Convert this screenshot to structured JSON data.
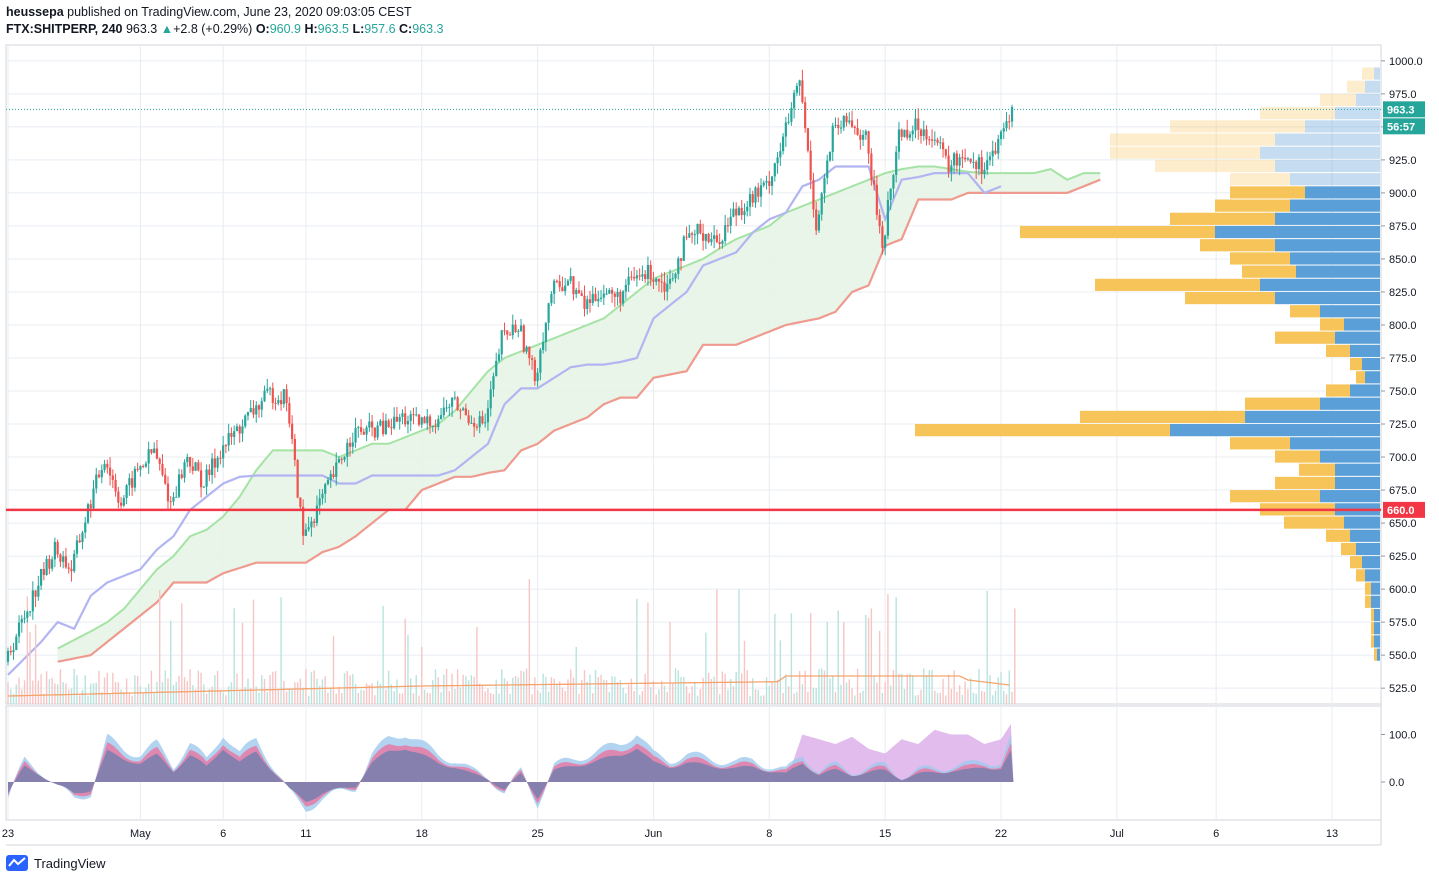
{
  "header": {
    "line1": {
      "user": "heussepa",
      "text": " published on TradingView.com, June 23, 2020 09:03:05 CEST"
    },
    "line2": {
      "symbol": "FTX:SHITPERP, 240",
      "last": "963.3",
      "change": "+2.8 (+0.29%)",
      "o_label": "O:",
      "o": "960.9",
      "h_label": "H:",
      "h": "963.5",
      "l_label": "L:",
      "l": "957.6",
      "c_label": "C:",
      "c": "963.3"
    }
  },
  "footer": {
    "brand": "TradingView"
  },
  "colors": {
    "bull": "#26a69a",
    "bear": "#ef5350",
    "grid": "#e8ecf2",
    "support": "#f23645",
    "tenkan": "#b2b5f2",
    "kijun": "#ef9a8f",
    "cloud_fill": "#e6f4e6",
    "span_a": "#a5e3a5",
    "vp_buy": "#5b9fd8",
    "vp_sell": "#f7c45a"
  },
  "chart_data": {
    "type": "candlestick",
    "timeframe": "240",
    "y_ticks": [
      "1000.0",
      "975.0",
      "950.0",
      "925.0",
      "900.0",
      "875.0",
      "850.0",
      "825.0",
      "800.0",
      "775.0",
      "750.0",
      "725.0",
      "700.0",
      "675.0",
      "650.0",
      "625.0",
      "600.0",
      "575.0",
      "550.0",
      "525.0"
    ],
    "y_tick_values": [
      1000,
      975,
      950,
      925,
      900,
      875,
      850,
      825,
      800,
      775,
      750,
      725,
      700,
      675,
      650,
      625,
      600,
      575,
      550,
      525
    ],
    "ylim": [
      513,
      1012
    ],
    "x_ticks": [
      "23",
      "May",
      "6",
      "11",
      "18",
      "25",
      "Jun",
      "8",
      "15",
      "22",
      "Jul",
      "6",
      "13"
    ],
    "x_tick_days": [
      0,
      8,
      13,
      18,
      25,
      32,
      39,
      46,
      53,
      60,
      67,
      73,
      80
    ],
    "current_price": "963.3",
    "countdown": "56:57",
    "horizontal_line": {
      "value": 660,
      "label": "660.0"
    },
    "price_path": [
      [
        0,
        545
      ],
      [
        1,
        575
      ],
      [
        2,
        605
      ],
      [
        3,
        630
      ],
      [
        4,
        615
      ],
      [
        5,
        660
      ],
      [
        6,
        700
      ],
      [
        7,
        665
      ],
      [
        8,
        690
      ],
      [
        9,
        705
      ],
      [
        10,
        665
      ],
      [
        11,
        700
      ],
      [
        12,
        680
      ],
      [
        13,
        705
      ],
      [
        14,
        720
      ],
      [
        15,
        735
      ],
      [
        16,
        748
      ],
      [
        17,
        745
      ],
      [
        18,
        640
      ],
      [
        19,
        665
      ],
      [
        20,
        690
      ],
      [
        21,
        718
      ],
      [
        22,
        720
      ],
      [
        23,
        722
      ],
      [
        24,
        730
      ],
      [
        25,
        725
      ],
      [
        26,
        728
      ],
      [
        27,
        742
      ],
      [
        28,
        730
      ],
      [
        29,
        725
      ],
      [
        30,
        790
      ],
      [
        31,
        800
      ],
      [
        32,
        760
      ],
      [
        33,
        825
      ],
      [
        34,
        835
      ],
      [
        35,
        815
      ],
      [
        36,
        826
      ],
      [
        37,
        820
      ],
      [
        38,
        835
      ],
      [
        39,
        840
      ],
      [
        40,
        830
      ],
      [
        41,
        860
      ],
      [
        42,
        872
      ],
      [
        43,
        862
      ],
      [
        44,
        885
      ],
      [
        45,
        895
      ],
      [
        46,
        905
      ],
      [
        47,
        940
      ],
      [
        48,
        985
      ],
      [
        49,
        875
      ],
      [
        50,
        945
      ],
      [
        51,
        955
      ],
      [
        52,
        940
      ],
      [
        53,
        860
      ],
      [
        54,
        945
      ],
      [
        55,
        950
      ],
      [
        56,
        945
      ],
      [
        57,
        920
      ],
      [
        58,
        930
      ],
      [
        59,
        920
      ],
      [
        60,
        935
      ],
      [
        60.75,
        963
      ]
    ],
    "tenkan": [
      [
        0,
        535
      ],
      [
        2,
        560
      ],
      [
        3,
        575
      ],
      [
        4,
        570
      ],
      [
        5,
        595
      ],
      [
        6,
        605
      ],
      [
        7,
        610
      ],
      [
        8,
        615
      ],
      [
        9,
        630
      ],
      [
        10,
        640
      ],
      [
        11,
        660
      ],
      [
        12,
        670
      ],
      [
        13,
        680
      ],
      [
        14,
        685
      ],
      [
        15,
        686
      ],
      [
        16,
        686
      ],
      [
        17,
        686
      ],
      [
        18,
        686
      ],
      [
        19,
        686
      ],
      [
        20,
        680
      ],
      [
        21,
        680
      ],
      [
        22,
        686
      ],
      [
        23,
        686
      ],
      [
        24,
        686
      ],
      [
        25,
        686
      ],
      [
        26,
        686
      ],
      [
        27,
        690
      ],
      [
        28,
        700
      ],
      [
        29,
        710
      ],
      [
        30,
        740
      ],
      [
        31,
        752
      ],
      [
        32,
        752
      ],
      [
        33,
        760
      ],
      [
        34,
        768
      ],
      [
        35,
        770
      ],
      [
        36,
        770
      ],
      [
        37,
        772
      ],
      [
        38,
        775
      ],
      [
        39,
        805
      ],
      [
        40,
        815
      ],
      [
        41,
        825
      ],
      [
        42,
        845
      ],
      [
        43,
        850
      ],
      [
        44,
        855
      ],
      [
        45,
        870
      ],
      [
        46,
        880
      ],
      [
        47,
        885
      ],
      [
        48,
        905
      ],
      [
        49,
        910
      ],
      [
        50,
        920
      ],
      [
        51,
        920
      ],
      [
        52,
        920
      ],
      [
        53,
        880
      ],
      [
        54,
        910
      ],
      [
        55,
        912
      ],
      [
        56,
        915
      ],
      [
        57,
        915
      ],
      [
        58,
        915
      ],
      [
        59,
        900
      ],
      [
        60,
        905
      ]
    ],
    "kijun": [
      [
        3,
        545
      ],
      [
        5,
        550
      ],
      [
        6,
        560
      ],
      [
        7,
        570
      ],
      [
        8,
        580
      ],
      [
        9,
        590
      ],
      [
        10,
        605
      ],
      [
        12,
        605
      ],
      [
        13,
        612
      ],
      [
        15,
        620
      ],
      [
        17,
        620
      ],
      [
        18,
        620
      ],
      [
        19,
        628
      ],
      [
        20,
        632
      ],
      [
        21,
        640
      ],
      [
        22,
        650
      ],
      [
        23,
        660
      ],
      [
        24,
        660
      ],
      [
        25,
        675
      ],
      [
        26,
        680
      ],
      [
        27,
        685
      ],
      [
        28,
        685
      ],
      [
        29,
        688
      ],
      [
        30,
        690
      ],
      [
        31,
        705
      ],
      [
        32,
        710
      ],
      [
        33,
        720
      ],
      [
        35,
        730
      ],
      [
        36,
        740
      ],
      [
        37,
        745
      ],
      [
        38,
        745
      ],
      [
        39,
        760
      ],
      [
        41,
        765
      ],
      [
        42,
        785
      ],
      [
        44,
        785
      ],
      [
        45,
        790
      ],
      [
        46,
        795
      ],
      [
        47,
        800
      ],
      [
        49,
        805
      ],
      [
        50,
        810
      ],
      [
        51,
        825
      ],
      [
        52,
        830
      ],
      [
        53,
        860
      ],
      [
        54,
        865
      ],
      [
        55,
        895
      ],
      [
        57,
        895
      ],
      [
        58,
        900
      ],
      [
        60,
        900
      ],
      [
        64,
        900
      ],
      [
        65,
        905
      ],
      [
        66,
        910
      ]
    ],
    "span_a": [
      [
        3,
        555
      ],
      [
        5,
        568
      ],
      [
        6,
        575
      ],
      [
        7,
        585
      ],
      [
        8,
        600
      ],
      [
        9,
        615
      ],
      [
        10,
        625
      ],
      [
        11,
        640
      ],
      [
        12,
        645
      ],
      [
        13,
        655
      ],
      [
        14,
        670
      ],
      [
        15,
        690
      ],
      [
        16,
        705
      ],
      [
        17,
        705
      ],
      [
        18,
        705
      ],
      [
        19,
        705
      ],
      [
        20,
        700
      ],
      [
        21,
        705
      ],
      [
        22,
        710
      ],
      [
        23,
        710
      ],
      [
        24,
        715
      ],
      [
        25,
        720
      ],
      [
        26,
        725
      ],
      [
        27,
        735
      ],
      [
        28,
        750
      ],
      [
        29,
        765
      ],
      [
        30,
        775
      ],
      [
        31,
        780
      ],
      [
        32,
        785
      ],
      [
        33,
        790
      ],
      [
        34,
        795
      ],
      [
        35,
        800
      ],
      [
        36,
        805
      ],
      [
        37,
        815
      ],
      [
        38,
        825
      ],
      [
        39,
        835
      ],
      [
        40,
        840
      ],
      [
        41,
        845
      ],
      [
        42,
        850
      ],
      [
        43,
        858
      ],
      [
        44,
        865
      ],
      [
        45,
        870
      ],
      [
        46,
        875
      ],
      [
        47,
        885
      ],
      [
        48,
        890
      ],
      [
        49,
        895
      ],
      [
        50,
        900
      ],
      [
        51,
        905
      ],
      [
        52,
        910
      ],
      [
        53,
        915
      ],
      [
        54,
        918
      ],
      [
        55,
        920
      ],
      [
        56,
        920
      ],
      [
        57,
        918
      ],
      [
        58,
        916
      ],
      [
        59,
        915
      ],
      [
        60,
        915
      ],
      [
        61,
        915
      ],
      [
        62,
        915
      ],
      [
        63,
        918
      ],
      [
        64,
        910
      ],
      [
        65,
        915
      ],
      [
        66,
        915
      ]
    ],
    "volume_profile": [
      {
        "price": 990,
        "buy": 0.02,
        "sell": 0.04
      },
      {
        "price": 980,
        "buy": 0.05,
        "sell": 0.06
      },
      {
        "price": 970,
        "buy": 0.08,
        "sell": 0.12
      },
      {
        "price": 960,
        "buy": 0.15,
        "sell": 0.25
      },
      {
        "price": 950,
        "buy": 0.25,
        "sell": 0.45
      },
      {
        "price": 940,
        "buy": 0.35,
        "sell": 0.55
      },
      {
        "price": 930,
        "buy": 0.4,
        "sell": 0.5
      },
      {
        "price": 920,
        "buy": 0.35,
        "sell": 0.4
      },
      {
        "price": 910,
        "buy": 0.3,
        "sell": 0.2
      },
      {
        "price": 900,
        "buy": 0.25,
        "sell": 0.25
      },
      {
        "price": 890,
        "buy": 0.3,
        "sell": 0.25
      },
      {
        "price": 880,
        "buy": 0.35,
        "sell": 0.35
      },
      {
        "price": 870,
        "buy": 0.55,
        "sell": 0.65
      },
      {
        "price": 860,
        "buy": 0.35,
        "sell": 0.25
      },
      {
        "price": 850,
        "buy": 0.3,
        "sell": 0.2
      },
      {
        "price": 840,
        "buy": 0.28,
        "sell": 0.18
      },
      {
        "price": 830,
        "buy": 0.4,
        "sell": 0.55
      },
      {
        "price": 820,
        "buy": 0.35,
        "sell": 0.3
      },
      {
        "price": 810,
        "buy": 0.2,
        "sell": 0.1
      },
      {
        "price": 800,
        "buy": 0.12,
        "sell": 0.08
      },
      {
        "price": 790,
        "buy": 0.15,
        "sell": 0.2
      },
      {
        "price": 780,
        "buy": 0.1,
        "sell": 0.08
      },
      {
        "price": 770,
        "buy": 0.06,
        "sell": 0.04
      },
      {
        "price": 760,
        "buy": 0.05,
        "sell": 0.03
      },
      {
        "price": 750,
        "buy": 0.1,
        "sell": 0.08
      },
      {
        "price": 740,
        "buy": 0.2,
        "sell": 0.25
      },
      {
        "price": 730,
        "buy": 0.45,
        "sell": 0.55
      },
      {
        "price": 720,
        "buy": 0.7,
        "sell": 0.85
      },
      {
        "price": 710,
        "buy": 0.3,
        "sell": 0.2
      },
      {
        "price": 700,
        "buy": 0.2,
        "sell": 0.15
      },
      {
        "price": 690,
        "buy": 0.15,
        "sell": 0.12
      },
      {
        "price": 680,
        "buy": 0.15,
        "sell": 0.2
      },
      {
        "price": 670,
        "buy": 0.2,
        "sell": 0.3
      },
      {
        "price": 660,
        "buy": 0.15,
        "sell": 0.25
      },
      {
        "price": 650,
        "buy": 0.12,
        "sell": 0.2
      },
      {
        "price": 640,
        "buy": 0.1,
        "sell": 0.08
      },
      {
        "price": 630,
        "buy": 0.08,
        "sell": 0.05
      },
      {
        "price": 620,
        "buy": 0.06,
        "sell": 0.04
      },
      {
        "price": 610,
        "buy": 0.05,
        "sell": 0.03
      },
      {
        "price": 600,
        "buy": 0.03,
        "sell": 0.02
      },
      {
        "price": 590,
        "buy": 0.03,
        "sell": 0.02
      },
      {
        "price": 580,
        "buy": 0.02,
        "sell": 0.01
      },
      {
        "price": 570,
        "buy": 0.02,
        "sell": 0.01
      },
      {
        "price": 560,
        "buy": 0.02,
        "sell": 0.01
      },
      {
        "price": 550,
        "buy": 0.01,
        "sell": 0.01
      }
    ],
    "oscillator": {
      "y_ticks": [
        "100.0",
        "0.0"
      ],
      "y_tick_values": [
        100,
        0
      ],
      "ylim": [
        -80,
        160
      ],
      "path": [
        [
          0,
          -30
        ],
        [
          1,
          40
        ],
        [
          2,
          20
        ],
        [
          3,
          -10
        ],
        [
          4,
          -30
        ],
        [
          5,
          -20
        ],
        [
          6,
          80
        ],
        [
          7,
          60
        ],
        [
          8,
          50
        ],
        [
          9,
          70
        ],
        [
          10,
          30
        ],
        [
          11,
          70
        ],
        [
          12,
          40
        ],
        [
          13,
          90
        ],
        [
          14,
          50
        ],
        [
          15,
          80
        ],
        [
          16,
          30
        ],
        [
          17,
          -20
        ],
        [
          18,
          -50
        ],
        [
          19,
          -30
        ],
        [
          20,
          -20
        ],
        [
          21,
          -10
        ],
        [
          22,
          50
        ],
        [
          23,
          80
        ],
        [
          24,
          90
        ],
        [
          25,
          70
        ],
        [
          26,
          50
        ],
        [
          27,
          40
        ],
        [
          28,
          20
        ],
        [
          29,
          10
        ],
        [
          30,
          -20
        ],
        [
          31,
          20
        ],
        [
          32,
          -40
        ],
        [
          33,
          30
        ],
        [
          34,
          40
        ],
        [
          35,
          50
        ],
        [
          36,
          60
        ],
        [
          37,
          70
        ],
        [
          38,
          90
        ],
        [
          39,
          50
        ],
        [
          40,
          40
        ],
        [
          41,
          50
        ],
        [
          42,
          45
        ],
        [
          43,
          40
        ],
        [
          44,
          35
        ],
        [
          45,
          40
        ],
        [
          46,
          30
        ],
        [
          47,
          20
        ],
        [
          48,
          50
        ],
        [
          49,
          20
        ],
        [
          50,
          30
        ],
        [
          51,
          20
        ],
        [
          52,
          25
        ],
        [
          53,
          30
        ],
        [
          54,
          10
        ],
        [
          55,
          20
        ],
        [
          56,
          25
        ],
        [
          57,
          30
        ],
        [
          58,
          30
        ],
        [
          59,
          40
        ],
        [
          60,
          35
        ],
        [
          60.75,
          90
        ]
      ],
      "purple_region": [
        [
          47,
          0
        ],
        [
          48,
          100
        ],
        [
          49,
          90
        ],
        [
          50,
          80
        ],
        [
          51,
          95
        ],
        [
          52,
          70
        ],
        [
          53,
          60
        ],
        [
          54,
          90
        ],
        [
          55,
          80
        ],
        [
          56,
          110
        ],
        [
          57,
          100
        ],
        [
          58,
          100
        ],
        [
          59,
          80
        ],
        [
          60,
          90
        ],
        [
          60.75,
          130
        ]
      ]
    }
  }
}
